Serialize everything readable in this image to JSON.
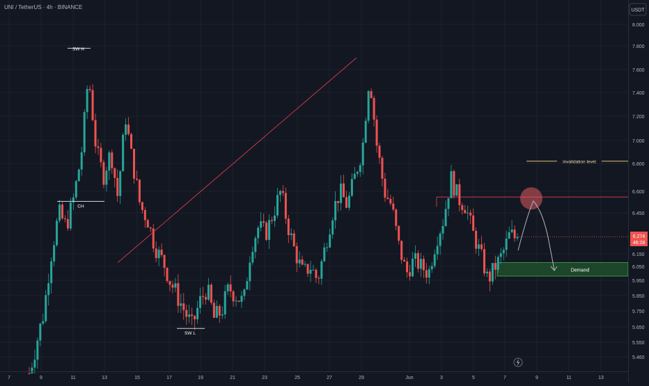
{
  "header": {
    "symbol_text": "UNI / TetherUS · 4h · BINANCE"
  },
  "currency_button": {
    "label": "USDT"
  },
  "colors": {
    "background": "#131722",
    "grid": "#1e222d",
    "axis_text": "#b2b5be",
    "bull": "#26a69a",
    "bear": "#ef5350",
    "trendline": "#c43a48",
    "demand_fill": "#1e4d2b",
    "demand_border": "#4caf50",
    "invalidation_line": "#e0c070",
    "circle": "#e05b61",
    "projection": "#b2b5be",
    "price_tag": "#ef5350"
  },
  "price_tag": {
    "price": "6.274",
    "countdown": "46:28"
  },
  "annotations": {
    "sw_high": "SW H",
    "sw_low": "SW L",
    "choch": "CH",
    "invalidation": "invalidation level",
    "demand": "Demand"
  },
  "footer_icon": "lightning-icon",
  "chart_data": {
    "type": "candlestick",
    "symbol": "UNI / TetherUS",
    "timeframe": "4h",
    "exchange": "BINANCE",
    "y_axis": {
      "range": [
        5.36,
        8.12
      ],
      "ticks": [
        8.0,
        7.8,
        7.6,
        7.4,
        7.2,
        7.0,
        6.8,
        6.6,
        6.45,
        6.15,
        6.05,
        5.95,
        5.85,
        5.75,
        5.65,
        5.55,
        5.46
      ],
      "tick_labels": [
        "8.000",
        "7.800",
        "7.600",
        "7.400",
        "7.200",
        "7.000",
        "6.800",
        "6.600",
        "6.450",
        "6.150",
        "6.050",
        "5.950",
        "5.850",
        "5.750",
        "5.650",
        "5.550",
        "5.460"
      ]
    },
    "x_axis": {
      "labels": [
        "7",
        "9",
        "11",
        "13",
        "15",
        "17",
        "19",
        "21",
        "23",
        "25",
        "27",
        "29",
        "Jun",
        "3",
        "5",
        "7",
        "9",
        "11",
        "13"
      ]
    },
    "close_path": [
      5.36,
      5.55,
      5.75,
      6.15,
      6.45,
      6.35,
      6.55,
      6.85,
      7.55,
      6.95,
      6.7,
      6.9,
      6.55,
      7.2,
      6.8,
      6.5,
      6.4,
      6.2,
      6.1,
      5.95,
      5.85,
      5.75,
      5.65,
      5.8,
      5.9,
      5.7,
      5.75,
      5.9,
      5.85,
      5.8,
      6.2,
      6.35,
      6.3,
      6.45,
      6.6,
      6.35,
      6.15,
      6.0,
      6.05,
      5.95,
      6.2,
      6.45,
      6.6,
      6.5,
      6.7,
      6.9,
      7.55,
      6.95,
      6.6,
      6.5,
      6.2,
      6.0,
      6.1,
      6.05,
      6.0,
      6.25,
      6.4,
      6.7,
      6.55,
      6.5,
      6.3,
      6.15,
      5.95,
      6.05,
      6.15,
      6.3,
      6.25
    ],
    "last_price": 6.274,
    "levels": {
      "invalidation": 6.82,
      "resistance": 6.56,
      "demand_zone": [
        5.98,
        6.08
      ]
    },
    "trendline": {
      "from": [
        "29",
        7.7
      ],
      "to": [
        "13",
        6.08
      ]
    },
    "annotations": [
      "SW H",
      "CH",
      "SW L",
      "invalidation level",
      "Demand"
    ]
  }
}
